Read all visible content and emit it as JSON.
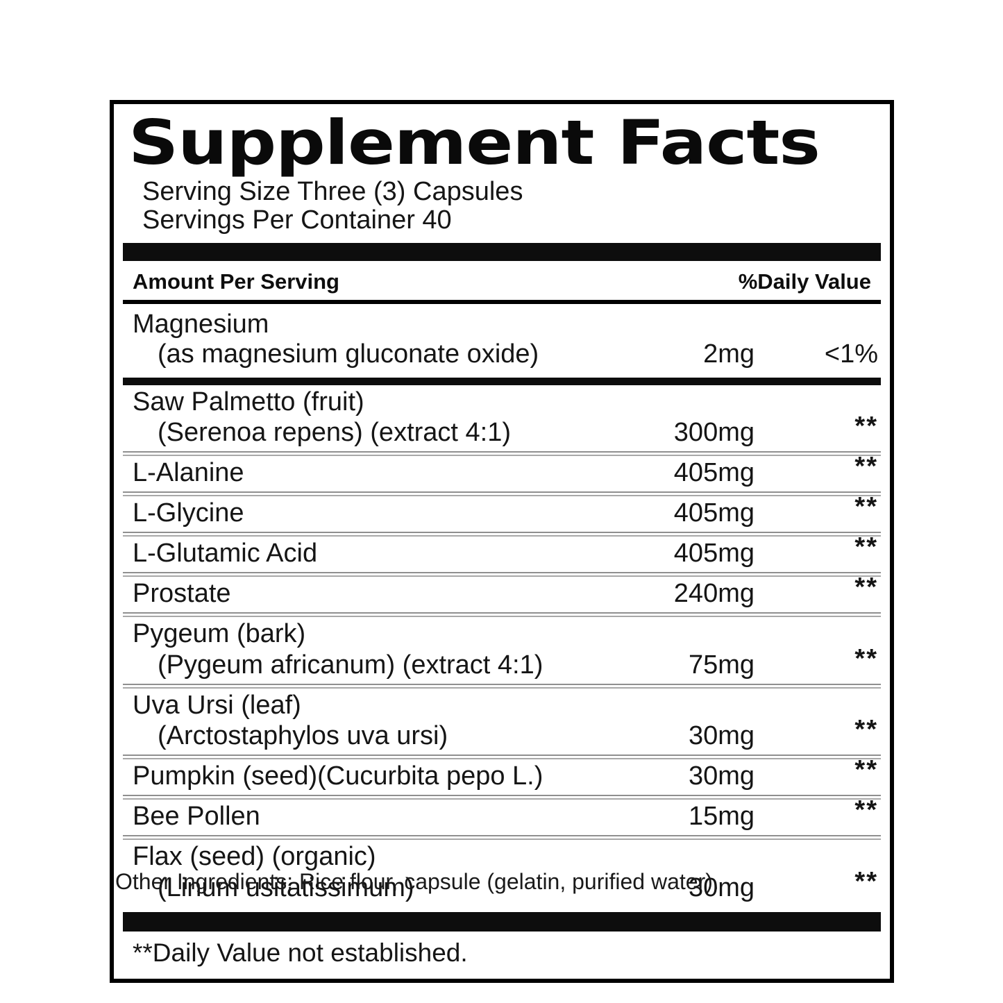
{
  "label": {
    "title": "Supplement Facts",
    "serving_size": "Serving Size Three (3) Capsules",
    "servings_per_container": "Servings Per Container 40",
    "header": {
      "amount": "Amount Per Serving",
      "daily_value": "%Daily Value"
    },
    "magnesium_row": {
      "name": "Magnesium",
      "detail": "(as magnesium gluconate oxide)",
      "amount": "2mg",
      "daily_value": "<1%"
    },
    "rows": [
      {
        "name": "Saw Palmetto (fruit)",
        "detail": "(Serenoa repens) (extract 4:1)",
        "amount": "300mg",
        "daily_value": "**"
      },
      {
        "name": "L-Alanine",
        "amount": "405mg",
        "daily_value": "**"
      },
      {
        "name": "L-Glycine",
        "amount": "405mg",
        "daily_value": "**"
      },
      {
        "name": "L-Glutamic Acid",
        "amount": "405mg",
        "daily_value": "**"
      },
      {
        "name": "Prostate",
        "amount": "240mg",
        "daily_value": "**"
      },
      {
        "name": "Pygeum (bark)",
        "detail": "(Pygeum africanum) (extract 4:1)",
        "amount": "75mg",
        "daily_value": "**"
      },
      {
        "name": "Uva Ursi (leaf)",
        "detail": "(Arctostaphylos uva ursi)",
        "amount": "30mg",
        "daily_value": "**"
      },
      {
        "name": "Pumpkin (seed)(Cucurbita pepo L.)",
        "amount": "30mg",
        "daily_value": "**"
      },
      {
        "name": "Bee Pollen",
        "amount": "15mg",
        "daily_value": "**"
      },
      {
        "name": "Flax (seed) (organic)",
        "detail": "(Linum usitatissimum)",
        "amount": "30mg",
        "daily_value": "**"
      }
    ],
    "footnote": "**Daily Value not established.",
    "other_ingredients": "Other Ingredients: Rice flour, capsule (gelatin, purified water)."
  },
  "colors": {
    "background": "#ffffff",
    "border": "#000000",
    "bar": "#0d0d0d",
    "divider": "#8f8f8f",
    "text": "#111111"
  }
}
